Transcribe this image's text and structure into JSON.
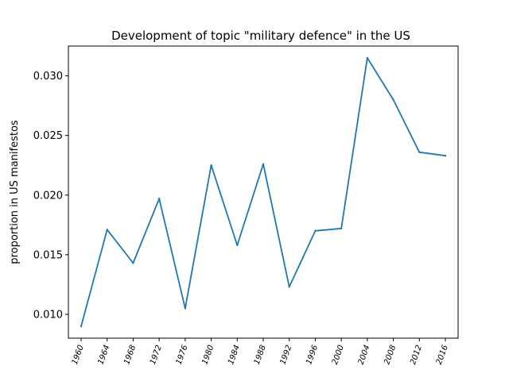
{
  "chart_data": {
    "type": "line",
    "title": "Development of topic \"military defence\" in the US",
    "xlabel": "",
    "ylabel": "proportion in US manifestos",
    "categories": [
      "1960",
      "1964",
      "1968",
      "1972",
      "1976",
      "1980",
      "1984",
      "1988",
      "1992",
      "1996",
      "2000",
      "2004",
      "2008",
      "2012",
      "2016"
    ],
    "series": [
      {
        "values": [
          0.009,
          0.0171,
          0.0143,
          0.0197,
          0.0105,
          0.0225,
          0.0158,
          0.0226,
          0.0123,
          0.017,
          0.0172,
          0.0315,
          0.028,
          0.0236,
          0.0233
        ]
      }
    ],
    "ylim": [
      0.008,
      0.0325
    ],
    "yticks": [
      "0.010",
      "0.015",
      "0.020",
      "0.025",
      "0.030"
    ],
    "ytick_values": [
      0.01,
      0.015,
      0.02,
      0.025,
      0.03
    ],
    "grid": false,
    "line_color": "#1f77b4"
  }
}
